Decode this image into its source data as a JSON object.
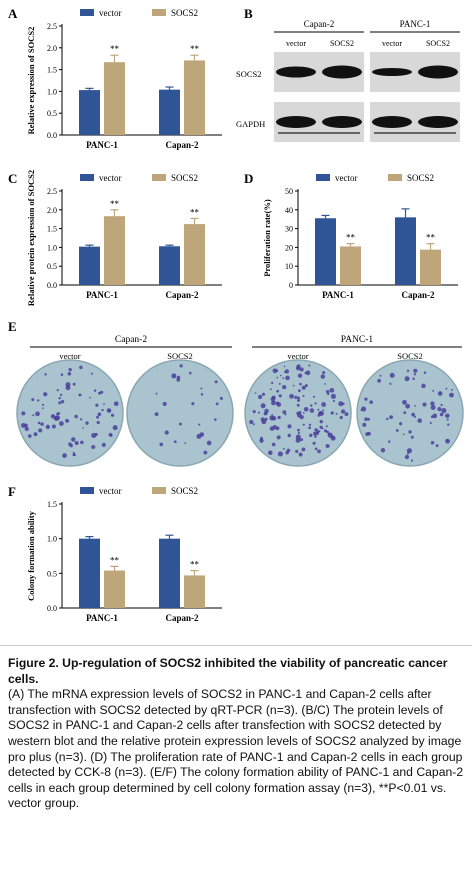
{
  "colors": {
    "vector": "#2f5597",
    "socs2": "#bfa57a",
    "dish_bg": "#a9c3cf",
    "colony": "#4a3f9a"
  },
  "panels": {
    "A": {
      "letter": "A",
      "chart_data": {
        "type": "bar",
        "categories": [
          "PANC-1",
          "Capan-2"
        ],
        "series": [
          {
            "name": "vector",
            "values": [
              1.03,
              1.04
            ],
            "errors": [
              0.04,
              0.06
            ]
          },
          {
            "name": "SOCS2",
            "values": [
              1.67,
              1.71
            ],
            "errors": [
              0.16,
              0.12
            ]
          }
        ],
        "significance": [
          "**",
          "**"
        ],
        "ylabel": "Relative expression of SOCS2",
        "ylim": [
          0,
          2.5
        ],
        "yticks": [
          "0.0",
          "0.5",
          "1.0",
          "1.5",
          "2.0",
          "2.5"
        ],
        "legend": "top"
      }
    },
    "B": {
      "letter": "B",
      "cell_lines": [
        "Capan-2",
        "PANC-1"
      ],
      "lanes": [
        "vector",
        "SOCS2",
        "vector",
        "SOCS2"
      ],
      "rows": [
        "SOCS2",
        "GAPDH"
      ]
    },
    "C": {
      "letter": "C",
      "chart_data": {
        "type": "bar",
        "categories": [
          "PANC-1",
          "Capan-2"
        ],
        "series": [
          {
            "name": "vector",
            "values": [
              1.02,
              1.03
            ],
            "errors": [
              0.04,
              0.03
            ]
          },
          {
            "name": "SOCS2",
            "values": [
              1.83,
              1.62
            ],
            "errors": [
              0.17,
              0.15
            ]
          }
        ],
        "significance": [
          "**",
          "**"
        ],
        "ylabel": "Relative protein expression of SOCS2",
        "ylim": [
          0,
          2.5
        ],
        "yticks": [
          "0.0",
          "0.5",
          "1.0",
          "1.5",
          "2.0",
          "2.5"
        ],
        "legend": "top"
      }
    },
    "D": {
      "letter": "D",
      "chart_data": {
        "type": "bar",
        "categories": [
          "PANC-1",
          "Capan-2"
        ],
        "series": [
          {
            "name": "vector",
            "values": [
              35.5,
              36.0
            ],
            "errors": [
              1.5,
              4.5
            ]
          },
          {
            "name": "SOCS2",
            "values": [
              20.5,
              18.8
            ],
            "errors": [
              1.5,
              3.2
            ]
          }
        ],
        "significance": [
          "**",
          "**"
        ],
        "ylabel": "Proliferation rate(%)",
        "ylim": [
          0,
          50
        ],
        "yticks": [
          "0",
          "10",
          "20",
          "30",
          "40",
          "50"
        ],
        "legend": "top"
      }
    },
    "E": {
      "letter": "E",
      "cell_lines": [
        "Capan-2",
        "PANC-1"
      ],
      "dishes": [
        "vector",
        "SOCS2",
        "vector",
        "SOCS2"
      ],
      "colony_density": [
        0.55,
        0.18,
        1.0,
        0.45
      ]
    },
    "F": {
      "letter": "F",
      "chart_data": {
        "type": "bar",
        "categories": [
          "PANC-1",
          "Capan-2"
        ],
        "series": [
          {
            "name": "vector",
            "values": [
              1.0,
              1.0
            ],
            "errors": [
              0.03,
              0.05
            ]
          },
          {
            "name": "SOCS2",
            "values": [
              0.54,
              0.47
            ],
            "errors": [
              0.06,
              0.07
            ]
          }
        ],
        "significance": [
          "**",
          "**"
        ],
        "ylabel": "Colony formation ability",
        "ylim": [
          0,
          1.5
        ],
        "yticks": [
          "0.0",
          "0.5",
          "1.0",
          "1.5"
        ],
        "legend": "top"
      }
    }
  },
  "caption": {
    "title": "Figure 2. Up-regulation of SOCS2 inhibited the viability of pancreatic cancer cells.",
    "body": "(A) The mRNA expression levels of SOCS2 in PANC-1 and Capan-2 cells after transfection with SOCS2 detected by qRT-PCR (n=3). (B/C) The protein levels of SOCS2 in PANC-1 and Capan-2 cells after transfection with SOCS2 detected by western blot and the relative protein expression levels of SOCS2 analyzed by image pro plus (n=3). (D) The proliferation rate of PANC-1 and Capan-2 cells in each group detected by CCK-8 (n=3). (E/F) The colony formation ability of PANC-1 and Capan-2 cells in each group determined by cell colony formation assay (n=3), **P<0.01 vs. vector group."
  }
}
